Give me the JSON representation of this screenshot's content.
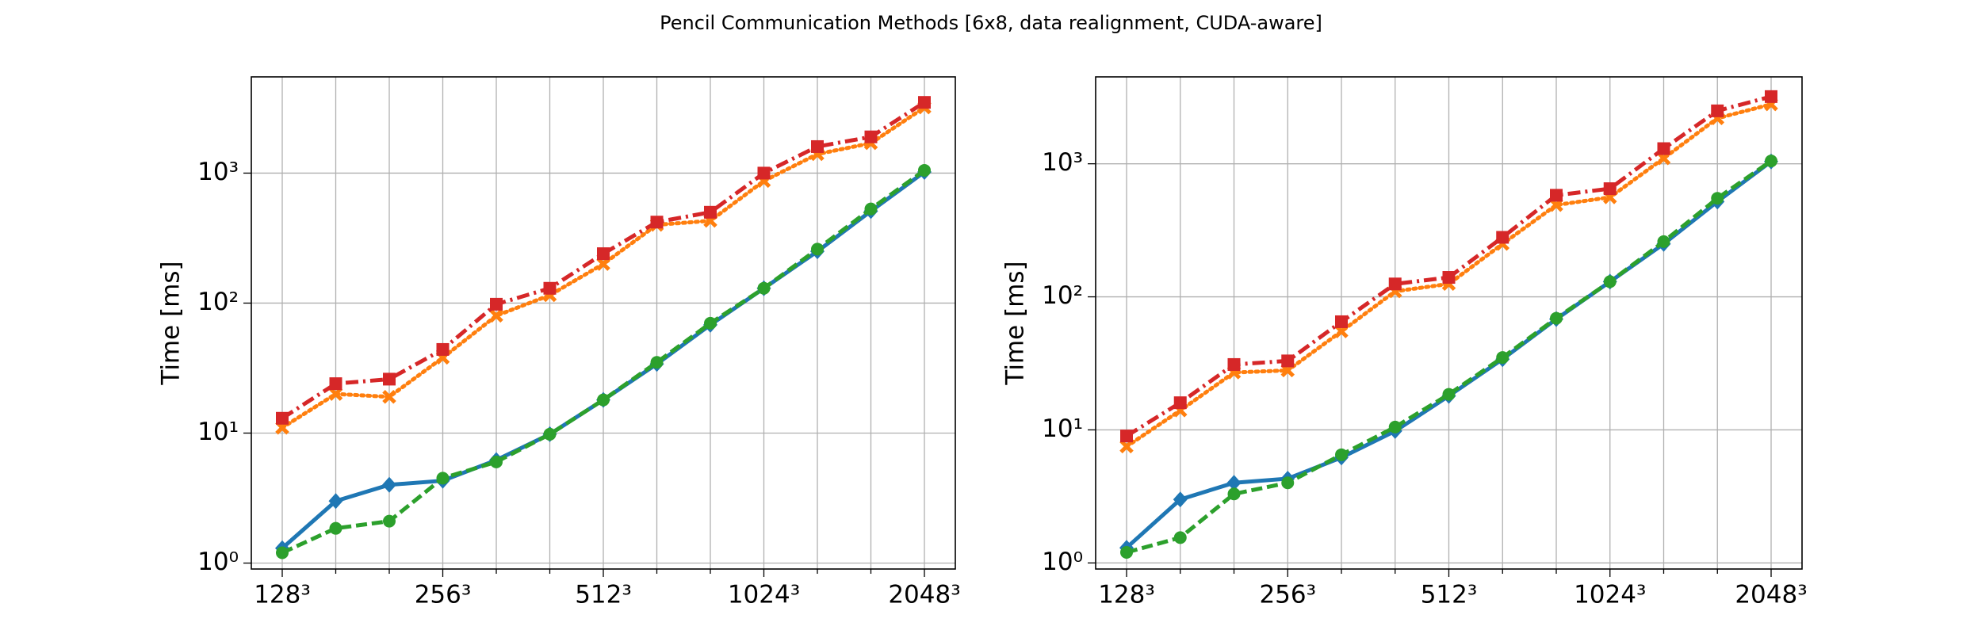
{
  "title": "Pencil Communication Methods [6x8, data realignment, CUDA-aware]",
  "chart_data": [
    {
      "type": "line",
      "ylabel": "Time [ms]",
      "yscale": "log",
      "grid": true,
      "categories": [
        "128³",
        null,
        null,
        "256³",
        null,
        null,
        "512³",
        null,
        null,
        "1024³",
        null,
        null,
        "2048³"
      ],
      "ylim": [
        0.9,
        5500
      ],
      "yticks": [
        {
          "value": 1,
          "label": "10⁰"
        },
        {
          "value": 10,
          "label": "10¹"
        },
        {
          "value": 100,
          "label": "10²"
        },
        {
          "value": 1000,
          "label": "10³"
        }
      ],
      "series": [
        {
          "color": "#1f77b4",
          "marker": "diamond",
          "linestyle": "solid",
          "values": [
            1.3,
            3.0,
            4.0,
            4.3,
            6.2,
            9.8,
            18,
            34,
            68,
            130,
            250,
            510,
            1020
          ]
        },
        {
          "color": "#2ca02c",
          "marker": "circle",
          "linestyle": "dashed",
          "values": [
            1.2,
            1.85,
            2.1,
            4.5,
            6.0,
            9.8,
            18,
            35,
            70,
            130,
            260,
            530,
            1050
          ]
        },
        {
          "color": "#ff7f0e",
          "marker": "x",
          "linestyle": "dotted",
          "values": [
            11,
            20,
            19,
            38,
            80,
            115,
            200,
            400,
            430,
            870,
            1400,
            1700,
            3200
          ]
        },
        {
          "color": "#d62728",
          "marker": "square",
          "linestyle": "dashdot",
          "values": [
            13,
            24,
            26,
            44,
            98,
            130,
            240,
            420,
            500,
            1000,
            1600,
            1900,
            3500
          ]
        }
      ]
    },
    {
      "type": "line",
      "ylabel": "Time [ms]",
      "yscale": "log",
      "grid": true,
      "categories": [
        "128³",
        null,
        null,
        "256³",
        null,
        null,
        "512³",
        null,
        null,
        "1024³",
        null,
        null,
        "2048³"
      ],
      "ylim": [
        0.9,
        4500
      ],
      "yticks": [
        {
          "value": 1,
          "label": "10⁰"
        },
        {
          "value": 10,
          "label": "10¹"
        },
        {
          "value": 100,
          "label": "10²"
        },
        {
          "value": 1000,
          "label": "10³"
        }
      ],
      "series": [
        {
          "color": "#1f77b4",
          "marker": "diamond",
          "linestyle": "solid",
          "values": [
            1.3,
            3.0,
            4.0,
            4.3,
            6.2,
            9.8,
            18,
            34,
            68,
            130,
            250,
            520,
            1040
          ]
        },
        {
          "color": "#2ca02c",
          "marker": "circle",
          "linestyle": "dashed",
          "values": [
            1.2,
            1.55,
            3.3,
            4.0,
            6.5,
            10.5,
            18.5,
            35,
            69,
            130,
            260,
            550,
            1050
          ]
        },
        {
          "color": "#ff7f0e",
          "marker": "x",
          "linestyle": "dotted",
          "values": [
            7.5,
            14,
            27,
            28,
            55,
            110,
            125,
            250,
            490,
            560,
            1100,
            2200,
            2800
          ]
        },
        {
          "color": "#d62728",
          "marker": "square",
          "linestyle": "dashdot",
          "values": [
            9,
            16,
            31,
            33,
            65,
            125,
            140,
            280,
            580,
            650,
            1300,
            2500,
            3200
          ]
        }
      ]
    }
  ]
}
